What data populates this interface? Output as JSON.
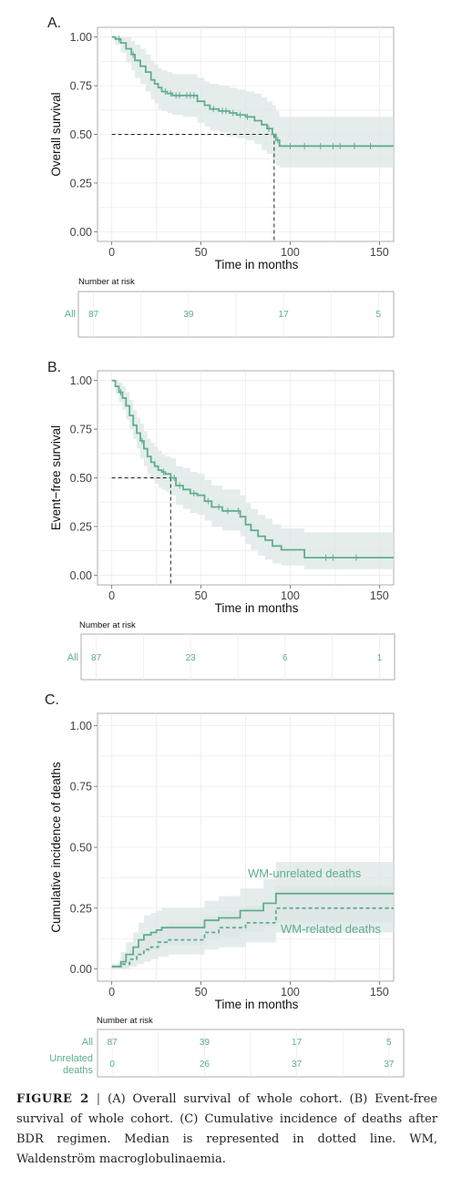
{
  "figure_label": "FIGURE 2",
  "figure_separator": "|",
  "caption": "(A) Overall survival of whole cohort. (B) Event-free survival of whole cohort. (C) Cumulative incidence of deaths after BDR regimen. Median is represented in dotted line. WM, Waldenström macroglobulinaemia.",
  "colors": {
    "curve": "#5fae8c",
    "band": "#dce6e6",
    "grid": "#ececec",
    "axis_text": "#444444",
    "risk_text": "#5fae8c"
  },
  "chart_data": [
    {
      "panel_label": "A.",
      "type": "line",
      "step": true,
      "xlabel": "Time in months",
      "ylabel": "Overall survival",
      "xlim": [
        -8,
        158
      ],
      "ylim": [
        -0.05,
        1.05
      ],
      "x_ticks": [
        "0",
        "50",
        "100",
        "150"
      ],
      "x_tick_values": [
        0,
        50,
        100,
        150
      ],
      "y_ticks": [
        "0.00",
        "0.25",
        "0.50",
        "0.75",
        "1.00"
      ],
      "y_tick_values": [
        0,
        0.25,
        0.5,
        0.75,
        1
      ],
      "grid": true,
      "median": {
        "x": 91,
        "y": 0.5
      },
      "series": [
        {
          "x": [
            0,
            2,
            5,
            8,
            11,
            13,
            16,
            19,
            22,
            24,
            26,
            28,
            31,
            34,
            40,
            48,
            52,
            55,
            60,
            66,
            70,
            75,
            80,
            84,
            87,
            90,
            92,
            94,
            160
          ],
          "y": [
            1.0,
            0.99,
            0.97,
            0.94,
            0.91,
            0.88,
            0.85,
            0.82,
            0.78,
            0.76,
            0.74,
            0.72,
            0.71,
            0.7,
            0.7,
            0.67,
            0.65,
            0.63,
            0.62,
            0.61,
            0.6,
            0.59,
            0.57,
            0.55,
            0.53,
            0.5,
            0.47,
            0.44,
            0.44
          ],
          "lower": [
            1.0,
            0.96,
            0.92,
            0.87,
            0.83,
            0.79,
            0.76,
            0.72,
            0.68,
            0.66,
            0.63,
            0.62,
            0.61,
            0.6,
            0.59,
            0.56,
            0.54,
            0.52,
            0.51,
            0.49,
            0.48,
            0.47,
            0.45,
            0.42,
            0.4,
            0.37,
            0.34,
            0.33,
            0.33
          ],
          "upper": [
            1.0,
            1.0,
            1.0,
            1.0,
            0.98,
            0.96,
            0.94,
            0.91,
            0.88,
            0.86,
            0.84,
            0.83,
            0.82,
            0.81,
            0.81,
            0.79,
            0.77,
            0.76,
            0.75,
            0.74,
            0.73,
            0.72,
            0.71,
            0.69,
            0.67,
            0.65,
            0.62,
            0.59,
            0.59
          ],
          "censor_x": [
            4,
            12,
            30,
            33,
            36,
            38,
            42,
            44,
            46,
            57,
            62,
            64,
            68,
            72,
            76,
            88,
            93,
            100,
            108,
            117,
            124,
            128,
            136,
            145
          ]
        }
      ],
      "risk_table": {
        "title": "Number at risk",
        "rows": [
          {
            "label": "All",
            "values": [
              "87",
              "39",
              "17",
              "5"
            ]
          }
        ]
      }
    },
    {
      "panel_label": "B.",
      "type": "line",
      "step": true,
      "xlabel": "Time in months",
      "ylabel": "Event−free survival",
      "xlim": [
        -8,
        158
      ],
      "ylim": [
        -0.05,
        1.05
      ],
      "x_ticks": [
        "0",
        "50",
        "100",
        "150"
      ],
      "x_tick_values": [
        0,
        50,
        100,
        150
      ],
      "y_ticks": [
        "0.00",
        "0.25",
        "0.50",
        "0.75",
        "1.00"
      ],
      "y_tick_values": [
        0,
        0.25,
        0.5,
        0.75,
        1
      ],
      "grid": true,
      "median": {
        "x": 33,
        "y": 0.5
      },
      "series": [
        {
          "x": [
            0,
            2,
            4,
            6,
            8,
            10,
            12,
            14,
            16,
            18,
            20,
            22,
            24,
            26,
            28,
            30,
            33,
            36,
            40,
            44,
            48,
            52,
            56,
            62,
            68,
            72,
            75,
            78,
            82,
            86,
            90,
            95,
            108,
            160
          ],
          "y": [
            1.0,
            0.97,
            0.94,
            0.91,
            0.87,
            0.82,
            0.77,
            0.73,
            0.69,
            0.65,
            0.61,
            0.58,
            0.56,
            0.54,
            0.53,
            0.52,
            0.5,
            0.46,
            0.44,
            0.42,
            0.41,
            0.38,
            0.35,
            0.33,
            0.33,
            0.3,
            0.26,
            0.23,
            0.2,
            0.18,
            0.15,
            0.13,
            0.09,
            0.09
          ],
          "lower": [
            1.0,
            0.93,
            0.89,
            0.85,
            0.8,
            0.75,
            0.7,
            0.65,
            0.6,
            0.56,
            0.52,
            0.49,
            0.47,
            0.45,
            0.44,
            0.43,
            0.41,
            0.36,
            0.34,
            0.32,
            0.31,
            0.28,
            0.25,
            0.23,
            0.23,
            0.2,
            0.16,
            0.13,
            0.1,
            0.08,
            0.06,
            0.05,
            0.03,
            0.03
          ],
          "upper": [
            1.0,
            1.0,
            0.99,
            0.97,
            0.94,
            0.9,
            0.85,
            0.81,
            0.78,
            0.74,
            0.7,
            0.68,
            0.66,
            0.64,
            0.62,
            0.61,
            0.6,
            0.56,
            0.55,
            0.53,
            0.52,
            0.49,
            0.46,
            0.44,
            0.44,
            0.41,
            0.37,
            0.34,
            0.31,
            0.29,
            0.26,
            0.24,
            0.22,
            0.22
          ],
          "censor_x": [
            5,
            17,
            29,
            35,
            38,
            46,
            54,
            60,
            65,
            71,
            120,
            124,
            137
          ]
        }
      ],
      "risk_table": {
        "title": "Number at risk",
        "rows": [
          {
            "label": "All",
            "values": [
              "87",
              "23",
              "6",
              "1"
            ]
          }
        ]
      }
    },
    {
      "panel_label": "C.",
      "type": "line",
      "step": true,
      "xlabel": "Time in months",
      "ylabel": "Cumulative incidence of deaths",
      "xlim": [
        -8,
        158
      ],
      "ylim": [
        -0.05,
        1.05
      ],
      "x_ticks": [
        "0",
        "50",
        "100",
        "150"
      ],
      "x_tick_values": [
        0,
        50,
        100,
        150
      ],
      "y_ticks": [
        "0.00",
        "0.25",
        "0.50",
        "0.75",
        "1.00"
      ],
      "y_tick_values": [
        0,
        0.25,
        0.5,
        0.75,
        1
      ],
      "grid": true,
      "series": [
        {
          "name": "WM-unrelated deaths",
          "dashed": false,
          "x": [
            0,
            5,
            8,
            12,
            15,
            18,
            22,
            25,
            28,
            52,
            60,
            72,
            85,
            92,
            160
          ],
          "y": [
            0.01,
            0.03,
            0.06,
            0.09,
            0.12,
            0.14,
            0.15,
            0.16,
            0.17,
            0.2,
            0.21,
            0.24,
            0.27,
            0.31,
            0.31
          ],
          "lower": [
            0.0,
            0.0,
            0.02,
            0.04,
            0.06,
            0.07,
            0.08,
            0.09,
            0.1,
            0.12,
            0.13,
            0.15,
            0.17,
            0.19,
            0.19
          ],
          "upper": [
            0.02,
            0.07,
            0.11,
            0.15,
            0.19,
            0.22,
            0.23,
            0.24,
            0.25,
            0.28,
            0.3,
            0.33,
            0.37,
            0.44,
            0.44
          ]
        },
        {
          "name": "WM-related deaths",
          "dashed": true,
          "x": [
            0,
            6,
            10,
            14,
            18,
            22,
            26,
            32,
            52,
            60,
            75,
            92,
            160
          ],
          "y": [
            0.01,
            0.02,
            0.04,
            0.06,
            0.08,
            0.09,
            0.11,
            0.12,
            0.15,
            0.17,
            0.19,
            0.25,
            0.25
          ],
          "lower": [
            0.0,
            0.0,
            0.01,
            0.02,
            0.03,
            0.04,
            0.05,
            0.06,
            0.08,
            0.09,
            0.11,
            0.15,
            0.15
          ],
          "upper": [
            0.02,
            0.05,
            0.08,
            0.11,
            0.14,
            0.15,
            0.17,
            0.19,
            0.22,
            0.24,
            0.26,
            0.34,
            0.34
          ]
        }
      ],
      "risk_table": {
        "title": "Number at risk",
        "rows": [
          {
            "label": "All",
            "values": [
              "87",
              "39",
              "17",
              "5"
            ]
          },
          {
            "label": "Unrelated deaths",
            "values": [
              "0",
              "26",
              "37",
              "37"
            ]
          }
        ]
      }
    }
  ]
}
